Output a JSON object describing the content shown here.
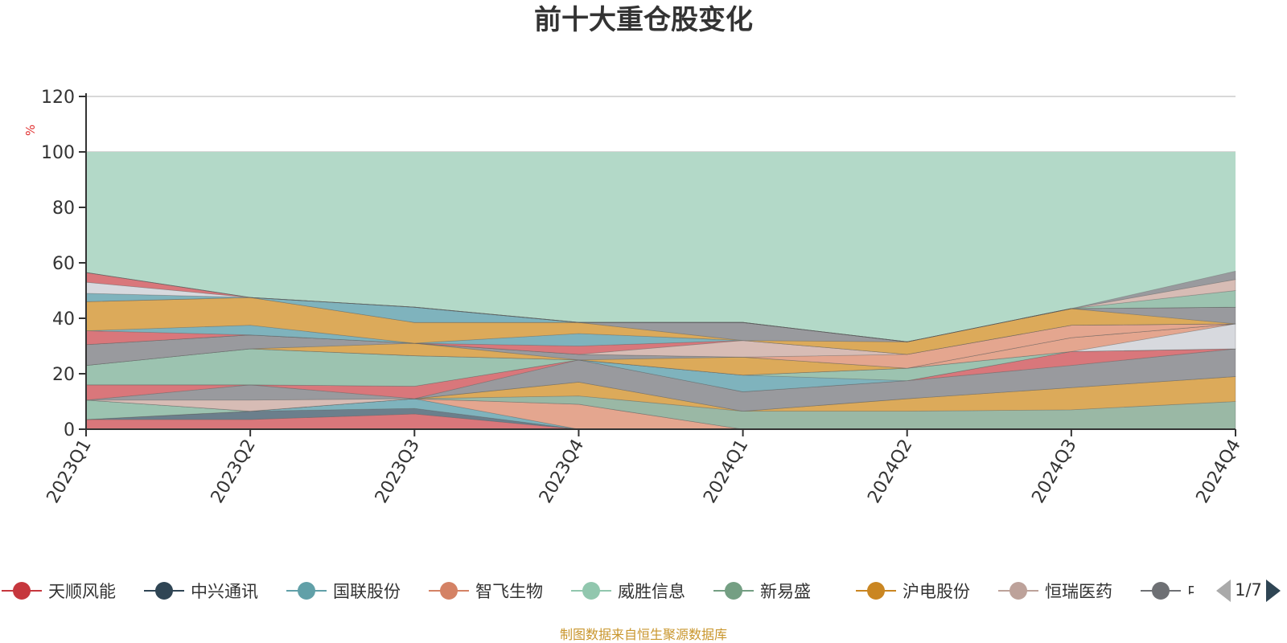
{
  "chart_data": {
    "type": "area",
    "stacked": true,
    "title": "前十大重仓股变化",
    "ylabel": "%",
    "xlabel": "",
    "ylim": [
      0,
      120
    ],
    "yticks": [
      0,
      20,
      40,
      60,
      80,
      100,
      120
    ],
    "categories": [
      "2023Q1",
      "2023Q2",
      "2023Q3",
      "2023Q4",
      "2024Q1",
      "2024Q2",
      "2024Q3",
      "2024Q4"
    ],
    "background_band": {
      "name": "",
      "value": 100,
      "color": "#b3d9c8"
    },
    "series": [
      {
        "name": "天顺风能",
        "color": "#d9777b",
        "values": [
          3.5,
          3.5,
          5.5,
          0,
          0,
          0,
          0,
          0
        ]
      },
      {
        "name": "中兴通讯",
        "color": "#6b7f8c",
        "values": [
          0,
          3,
          2,
          0,
          0,
          0,
          0,
          0
        ]
      },
      {
        "name": "国联股份",
        "color": "#7fb3bd",
        "values": [
          0,
          0,
          3.5,
          0,
          0,
          0,
          0,
          0
        ]
      },
      {
        "name": "智飞生物",
        "color": "#e4a68f",
        "values": [
          0,
          0,
          0,
          9,
          0,
          0,
          0,
          0
        ]
      },
      {
        "name": "威胜信息",
        "color": "#9cc3b0",
        "values": [
          7,
          0,
          0,
          0,
          0,
          0,
          0,
          0
        ]
      },
      {
        "name": "新易盛",
        "color": "#9ab8a5",
        "values": [
          0,
          0,
          0,
          3,
          6.5,
          6.5,
          7,
          10
        ]
      },
      {
        "name": "沪电股份",
        "color": "#dcaa5a",
        "values": [
          0,
          0,
          0,
          5,
          0,
          4.5,
          8,
          9
        ]
      },
      {
        "name": "恒瑞医药",
        "color": "#d7bcb5",
        "values": [
          0,
          4,
          0,
          0,
          0,
          0,
          0,
          0
        ]
      },
      {
        "name": "中际旭创",
        "color": "#999a9e",
        "values": [
          0,
          5.5,
          0,
          8,
          7,
          6.5,
          8,
          10
        ]
      },
      {
        "name": "",
        "color": "#d9777b",
        "values": [
          5.5,
          0,
          4.5,
          0,
          0,
          0,
          5,
          0
        ]
      },
      {
        "name": "",
        "color": "#7fb3bd",
        "values": [
          0,
          0,
          0,
          0,
          6,
          0,
          0,
          0
        ]
      },
      {
        "name": "",
        "color": "#9cc3b0",
        "values": [
          7,
          13,
          11,
          0,
          0,
          4.5,
          0,
          0
        ]
      },
      {
        "name": "",
        "color": "#d7d9de",
        "values": [
          0,
          0,
          0,
          0,
          0,
          0,
          0,
          9
        ]
      },
      {
        "name": "",
        "color": "#e4a68f",
        "values": [
          0,
          0,
          0,
          0,
          0,
          0,
          5,
          0
        ]
      },
      {
        "name": "",
        "color": "#dcaa5a",
        "values": [
          0,
          0,
          4.5,
          0,
          6.5,
          0,
          0,
          0
        ]
      },
      {
        "name": "",
        "color": "#999a9e",
        "values": [
          7.5,
          5,
          0,
          2,
          0,
          0,
          0,
          0
        ]
      },
      {
        "name": "",
        "color": "#e4a68f",
        "values": [
          0,
          0,
          0,
          0,
          0,
          5,
          4.5,
          0
        ]
      },
      {
        "name": "",
        "color": "#d7bcb5",
        "values": [
          0,
          0,
          0,
          0,
          6,
          0,
          0,
          0
        ]
      },
      {
        "name": "",
        "color": "#d9777b",
        "values": [
          5,
          0,
          0,
          3,
          0,
          0,
          0,
          0
        ]
      },
      {
        "name": "",
        "color": "#7fb3bd",
        "values": [
          0,
          3.5,
          0,
          4.5,
          0,
          0,
          0,
          0
        ]
      },
      {
        "name": "",
        "color": "#dcaa5a",
        "values": [
          10.5,
          10,
          7.5,
          4,
          0,
          4.5,
          6,
          0
        ]
      },
      {
        "name": "",
        "color": "#999a9e",
        "values": [
          0,
          0,
          0,
          0,
          6.5,
          0,
          0,
          6
        ]
      },
      {
        "name": "",
        "color": "#7fb3bd",
        "values": [
          3,
          0,
          5.5,
          0,
          0,
          0,
          0,
          0
        ]
      },
      {
        "name": "",
        "color": "#d7d9de",
        "values": [
          4,
          0,
          0,
          0,
          0,
          0,
          0,
          0
        ]
      },
      {
        "name": "",
        "color": "#d9777b",
        "values": [
          3.5,
          0,
          0,
          0,
          0,
          0,
          0,
          0
        ]
      },
      {
        "name": "",
        "color": "#9cc3b0",
        "values": [
          0,
          0,
          0,
          0,
          0,
          0,
          0,
          6
        ]
      },
      {
        "name": "",
        "color": "#d7bcb5",
        "values": [
          0,
          0,
          0,
          0,
          0,
          0,
          0,
          4
        ]
      },
      {
        "name": "",
        "color": "#999a9e",
        "values": [
          0,
          0,
          0,
          0,
          0,
          0,
          0,
          3
        ]
      }
    ],
    "legend": {
      "position": "bottom",
      "items": [
        {
          "label": "天顺风能",
          "color": "#c6373d"
        },
        {
          "label": "中兴通讯",
          "color": "#2f4554"
        },
        {
          "label": "国联股份",
          "color": "#61a0a8"
        },
        {
          "label": "智飞生物",
          "color": "#d48265"
        },
        {
          "label": "威胜信息",
          "color": "#91c7ae"
        },
        {
          "label": "新易盛",
          "color": "#749f83"
        },
        {
          "label": "沪电股份",
          "color": "#ca8622"
        },
        {
          "label": "恒瑞医药",
          "color": "#bda29a"
        },
        {
          "label": "中际旭创",
          "color": "#6e7074"
        }
      ]
    },
    "pager": {
      "text": "1/7"
    }
  },
  "footer": {
    "source": "制图数据来自恒生聚源数据库"
  }
}
